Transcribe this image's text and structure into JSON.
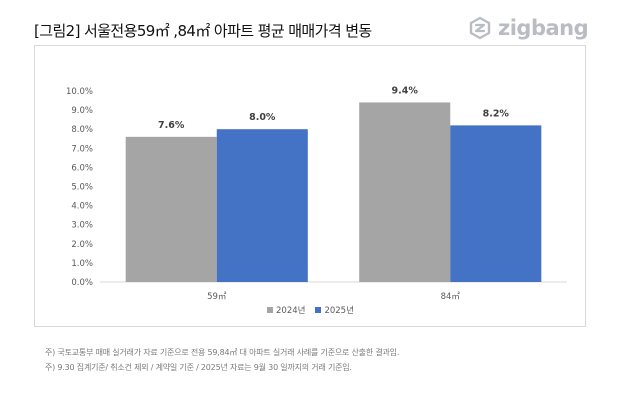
{
  "header": {
    "title": "[그림2] 서울전용59㎡ ,84㎡ 아파트 평균 매매가격 변동",
    "logo_text": "zigbang",
    "logo_icon": "zigbang-logo-icon"
  },
  "chart_data": {
    "type": "bar",
    "categories": [
      "59㎡",
      "84㎡"
    ],
    "series": [
      {
        "name": "2024년",
        "values": [
          7.6,
          9.4
        ],
        "labels": [
          "7.6%",
          "9.4%"
        ],
        "color": "#a5a5a5"
      },
      {
        "name": "2025년",
        "values": [
          8.0,
          8.2
        ],
        "labels": [
          "8.0%",
          "8.2%"
        ],
        "color": "#4472c4"
      }
    ],
    "ylim": [
      0,
      10
    ],
    "yticks": [
      "0.0%",
      "1.0%",
      "2.0%",
      "3.0%",
      "4.0%",
      "5.0%",
      "6.0%",
      "7.0%",
      "8.0%",
      "9.0%",
      "10.0%"
    ],
    "grid": false,
    "legend_position": "bottom",
    "title": "",
    "xlabel": "",
    "ylabel": ""
  },
  "notes": [
    "주) 국토교통부 매매 실거래가 자료 기준으로 전용 59,84㎡ 대 아파트 실거래 사례를 기준으로 산출한 결과임.",
    "주) 9.30 집계기준/ 취소건 제외 / 계약일 기준 / 2025년 자료는 9월 30 일까지의 거래 기준임."
  ]
}
